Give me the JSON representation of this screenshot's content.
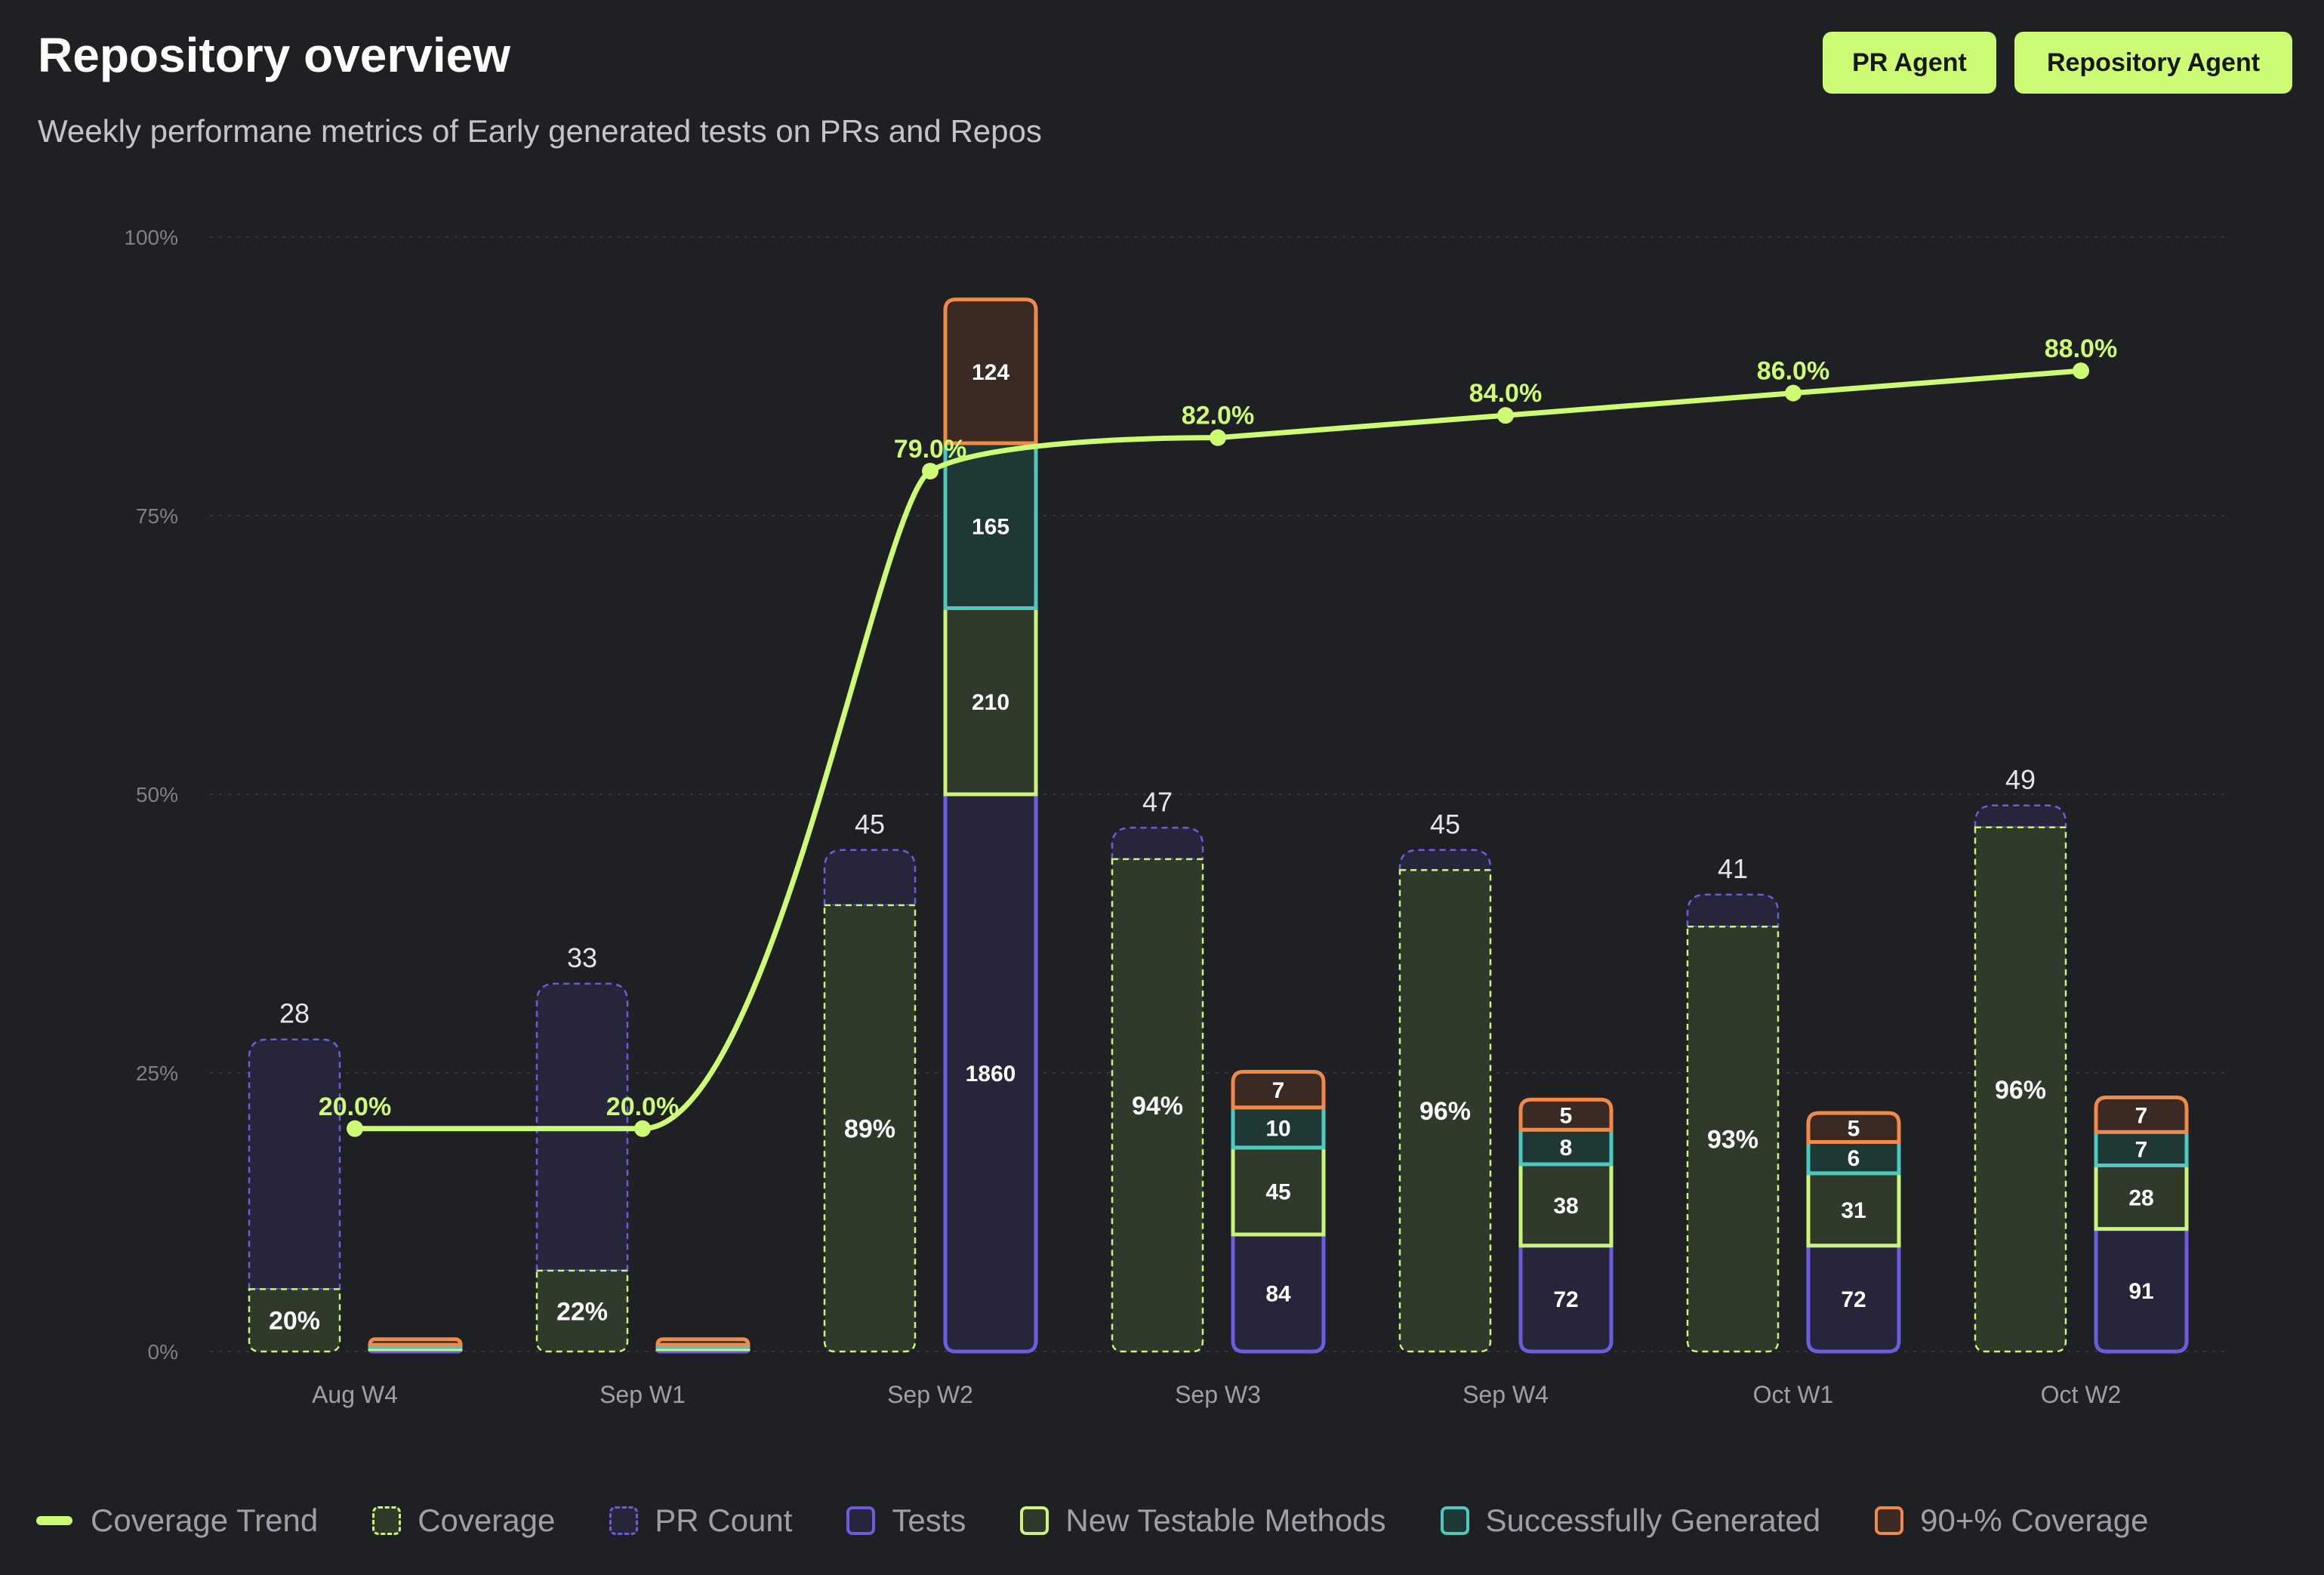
{
  "header": {
    "title": "Repository overview",
    "subtitle": "Weekly performane metrics of Early generated tests on PRs and Repos"
  },
  "buttons": {
    "pr_agent": "PR Agent",
    "repository_agent": "Repository Agent"
  },
  "colors": {
    "background": "#1f2024",
    "accent": "#cdfb73",
    "coverage_fill": "#2f3a2b",
    "pr_count_fill": "#26253a",
    "pr_count_stroke": "#6b5ce0",
    "tests_stroke": "#6b5ce0",
    "new_testable_stroke": "#c8f57a",
    "success_stroke": "#4ec9c0",
    "coverage90_stroke": "#ef8a4a"
  },
  "legend": [
    {
      "label": "Coverage Trend",
      "kind": "line"
    },
    {
      "label": "Coverage",
      "kind": "coverage"
    },
    {
      "label": "PR Count",
      "kind": "pr"
    },
    {
      "label": "Tests",
      "kind": "tests"
    },
    {
      "label": "New Testable Methods",
      "kind": "ntm"
    },
    {
      "label": "Successfully Generated",
      "kind": "sg"
    },
    {
      "label": "90+% Coverage",
      "kind": "c90"
    }
  ],
  "chart_data": {
    "type": "bar",
    "title": "Repository overview",
    "categories": [
      "Aug W4",
      "Sep W1",
      "Sep W2",
      "Sep W3",
      "Sep W4",
      "Oct W1",
      "Oct W2"
    ],
    "y_ticks": [
      "0%",
      "25%",
      "50%",
      "75%",
      "100%"
    ],
    "ylim": [
      0,
      100
    ],
    "pr_count": [
      28,
      33,
      45,
      47,
      45,
      41,
      49
    ],
    "coverage_pct": [
      20,
      22,
      89,
      94,
      96,
      93,
      96
    ],
    "coverage_labels": [
      "20%",
      "22%",
      "89%",
      "94%",
      "96%",
      "93%",
      "96%"
    ],
    "coverage_trend": [
      20.0,
      20.0,
      79.0,
      82.0,
      84.0,
      86.0,
      88.0
    ],
    "coverage_trend_labels": [
      "20.0%",
      "20.0%",
      "79.0%",
      "82.0%",
      "84.0%",
      "86.0%",
      "88.0%"
    ],
    "repo_stack": {
      "series": [
        {
          "name": "Tests",
          "values": [
            0,
            0,
            1860,
            84,
            72,
            72,
            91
          ],
          "labels": [
            "",
            "",
            "1860",
            "84",
            "72",
            "72",
            "91"
          ],
          "pct": [
            0.2,
            0.2,
            50,
            10.5,
            9.5,
            9.5,
            11
          ]
        },
        {
          "name": "New Testable Methods",
          "values": [
            0,
            0,
            210,
            45,
            38,
            31,
            28
          ],
          "labels": [
            "",
            "",
            "210",
            "45",
            "38",
            "31",
            "28"
          ],
          "pct": [
            0.2,
            0.2,
            16.7,
            7.8,
            7.3,
            6.5,
            5.7
          ]
        },
        {
          "name": "Successfully Generated",
          "values": [
            0,
            0,
            165,
            10,
            8,
            6,
            7
          ],
          "labels": [
            "",
            "",
            "165",
            "10",
            "8",
            "6",
            "7"
          ],
          "pct": [
            0.2,
            0.2,
            14.8,
            3.6,
            3.1,
            2.8,
            3.0
          ]
        },
        {
          "name": "90+% Coverage",
          "values": [
            0,
            0,
            124,
            7,
            5,
            5,
            7
          ],
          "labels": [
            "",
            "",
            "124",
            "7",
            "5",
            "5",
            "7"
          ],
          "pct": [
            0.5,
            0.5,
            12.9,
            3.2,
            2.7,
            2.6,
            3.1
          ]
        }
      ]
    }
  }
}
